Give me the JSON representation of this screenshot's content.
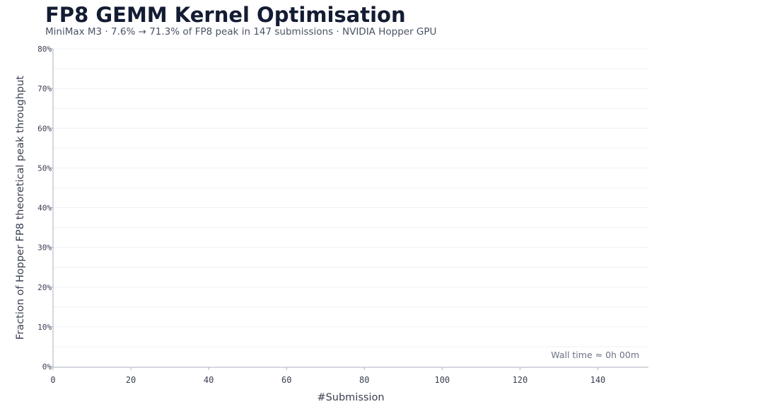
{
  "header": {
    "title": "FP8 GEMM Kernel Optimisation",
    "subtitle": "MiniMax M3  ·  7.6% → 71.3% of FP8 peak in 147 submissions  ·  NVIDIA Hopper GPU"
  },
  "chart_data": {
    "type": "line",
    "title": "FP8 GEMM Kernel Optimisation",
    "subtitle": "MiniMax M3  ·  7.6% → 71.3% of FP8 peak in 147 submissions  ·  NVIDIA Hopper GPU",
    "xlabel": "#Submission",
    "ylabel": "Fraction of Hopper FP8 theoretical peak throughput",
    "xlim": [
      0,
      153
    ],
    "ylim": [
      0,
      80
    ],
    "x_ticks": [
      0,
      20,
      40,
      60,
      80,
      100,
      120,
      140
    ],
    "y_ticks": [
      0,
      10,
      20,
      30,
      40,
      50,
      60,
      70,
      80
    ],
    "y_tick_labels": [
      "0%",
      "10%",
      "20%",
      "30%",
      "40%",
      "50%",
      "60%",
      "70%",
      "80%"
    ],
    "grid": true,
    "series": [],
    "annotation": "Wall time ≈ 0h 00m"
  },
  "colors": {
    "title": "#131c33",
    "text": "#3a4052",
    "grid": "#eef0f4",
    "axis": "#a9b0bf"
  }
}
